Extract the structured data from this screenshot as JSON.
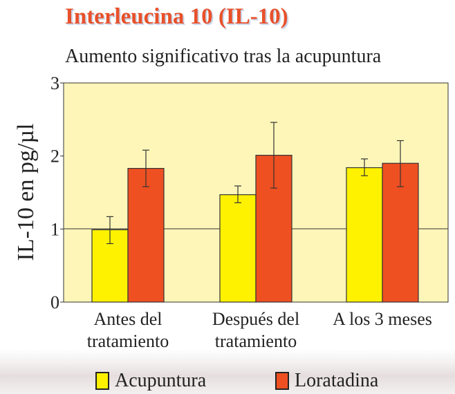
{
  "chart_data": {
    "type": "bar",
    "title": "Interleucina 10 (IL-10)",
    "subtitle": "Aumento significativo tras la acupuntura",
    "ylabel": "IL-10 en pg/µl",
    "xlabel": "",
    "ylim": [
      0,
      3
    ],
    "yticks": [
      "0",
      "1",
      "2",
      "3"
    ],
    "categories": [
      [
        "Antes del",
        "tratamiento"
      ],
      [
        "Después del",
        "tratamiento"
      ],
      [
        "A los 3 meses"
      ]
    ],
    "series": [
      {
        "name": "Acupuntura",
        "color": "#fff200",
        "values": [
          0.99,
          1.47,
          1.84
        ],
        "error_low": [
          0.8,
          1.36,
          1.73
        ],
        "error_high": [
          1.17,
          1.59,
          1.96
        ]
      },
      {
        "name": "Loratadina",
        "color": "#ee5022",
        "values": [
          1.83,
          2.01,
          1.9
        ],
        "error_low": [
          1.58,
          1.56,
          1.58
        ],
        "error_high": [
          2.08,
          2.46,
          2.21
        ]
      }
    ],
    "grid": "horizontal line at y=1",
    "plot_background": "#fdf6b8",
    "legend_position": "bottom"
  }
}
